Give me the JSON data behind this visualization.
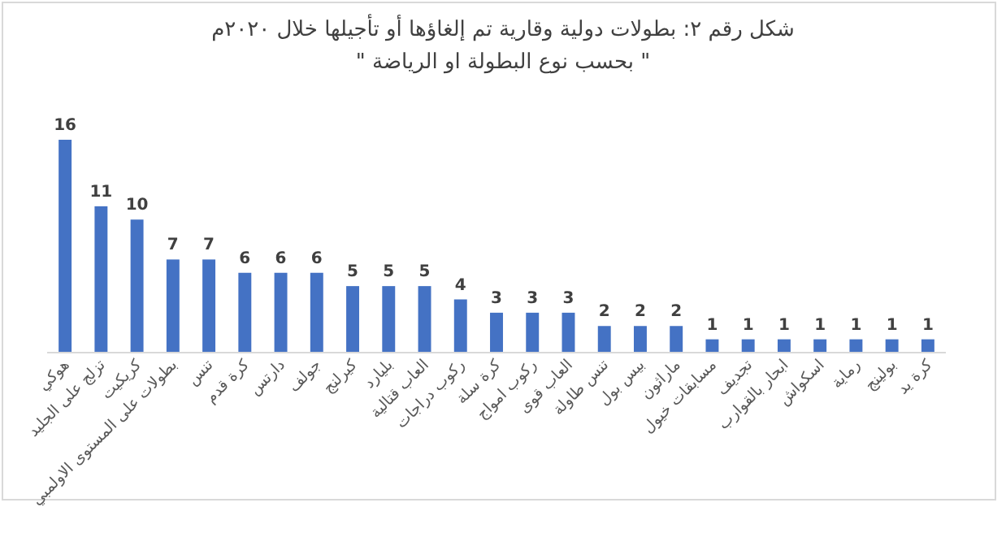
{
  "chart_data": {
    "type": "bar",
    "title": "شكل رقم ٢: بطولات دولية وقارية تم إلغاؤها أو تأجيلها خلال ٢٠٢٠م",
    "subtitle": "\" بحسب نوع البطولة او الرياضة \"",
    "categories": [
      "هوكي",
      "تزلج على الجليد",
      "كريكيت",
      "بطولات على المستوى الاولمبي",
      "تنس",
      "كرة قدم",
      "دارتس",
      "جولف",
      "كيرلنج",
      "بليارد",
      "العاب قتالية",
      "ركوب دراجات",
      "كرة سلة",
      "ركوب امواج",
      "العاب قوى",
      "تنس طاولة",
      "بيس بول",
      "ماراثون",
      "مسابقات خيول",
      "تجديف",
      "ابحار بالقوارب",
      "اسكواش",
      "رماية",
      "بولينج",
      "كرة يد"
    ],
    "values": [
      16,
      11,
      10,
      7,
      7,
      6,
      6,
      6,
      5,
      5,
      5,
      4,
      3,
      3,
      3,
      2,
      2,
      2,
      1,
      1,
      1,
      1,
      1,
      1,
      1
    ],
    "color": "#4472c4",
    "data_labels": true
  }
}
